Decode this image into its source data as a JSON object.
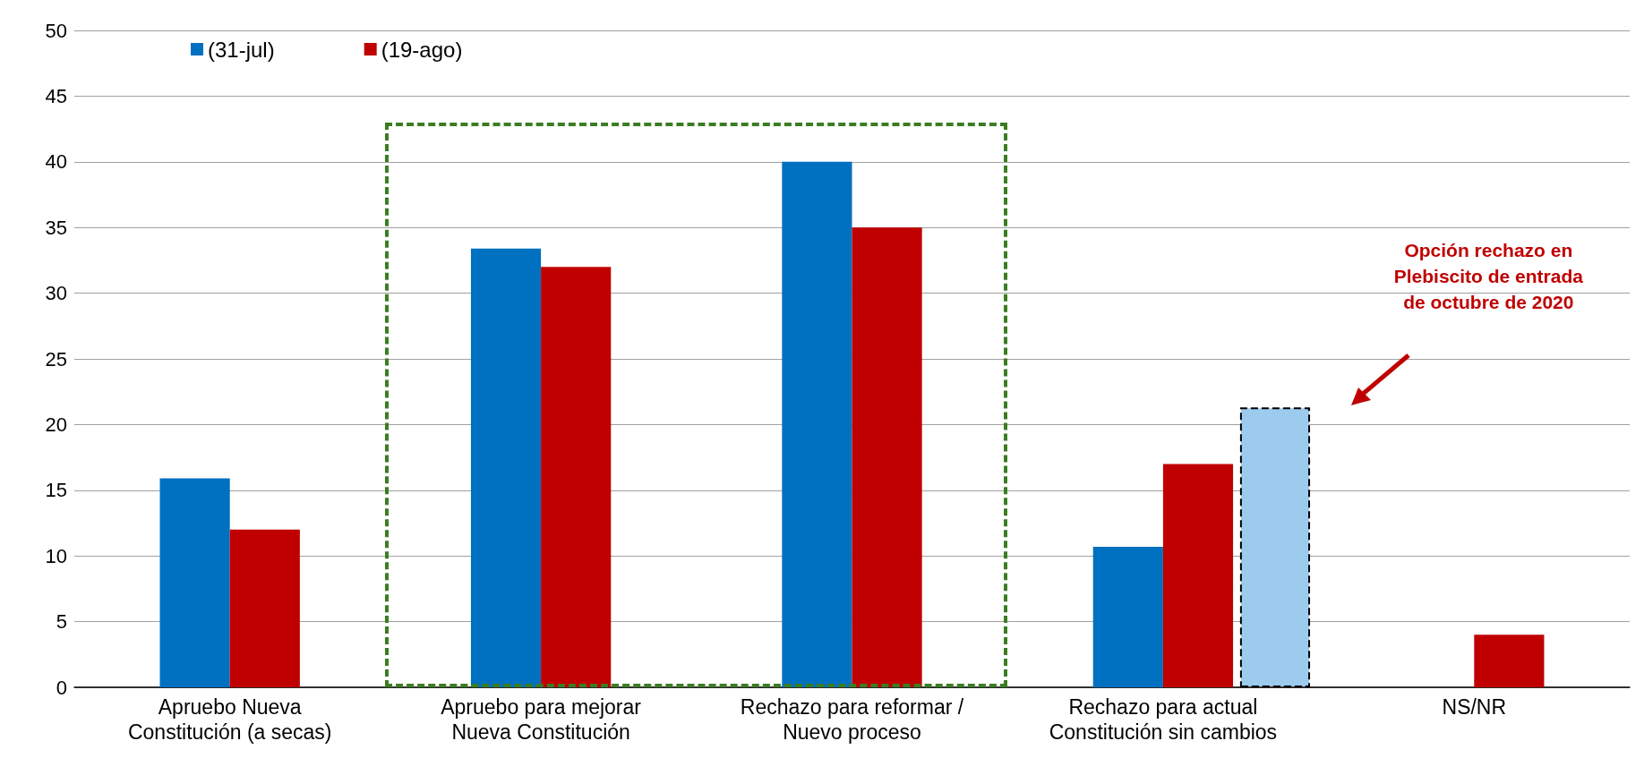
{
  "chart_data": {
    "type": "bar",
    "categories": [
      "Apruebo Nueva\nConstitución (a secas)",
      "Apruebo para mejorar\nNueva Constitución",
      "Rechazo para reformar /\nNuevo proceso",
      "Rechazo para actual\nConstitución sin cambios",
      "NS/NR"
    ],
    "series": [
      {
        "name": "(31-jul)",
        "color": "#0070c0",
        "values": [
          15.9,
          33.4,
          40,
          10.7,
          null
        ]
      },
      {
        "name": "(19-ago)",
        "color": "#c00000",
        "values": [
          12,
          32,
          35,
          17,
          4
        ]
      },
      {
        "type": "bar",
        "color": "#9dcbee",
        "line_style": "dashed",
        "values": [
          null,
          null,
          null,
          21.3,
          null
        ]
      }
    ],
    "ylim": [
      0,
      50
    ],
    "yticks": [
      0,
      5,
      10,
      15,
      20,
      25,
      30,
      35,
      40,
      45,
      50
    ],
    "grid": "y",
    "legend": "top left",
    "annotations": [
      "Opción rechazo en\nPlebiscito de entrada\nde octubre de 2020"
    ]
  }
}
